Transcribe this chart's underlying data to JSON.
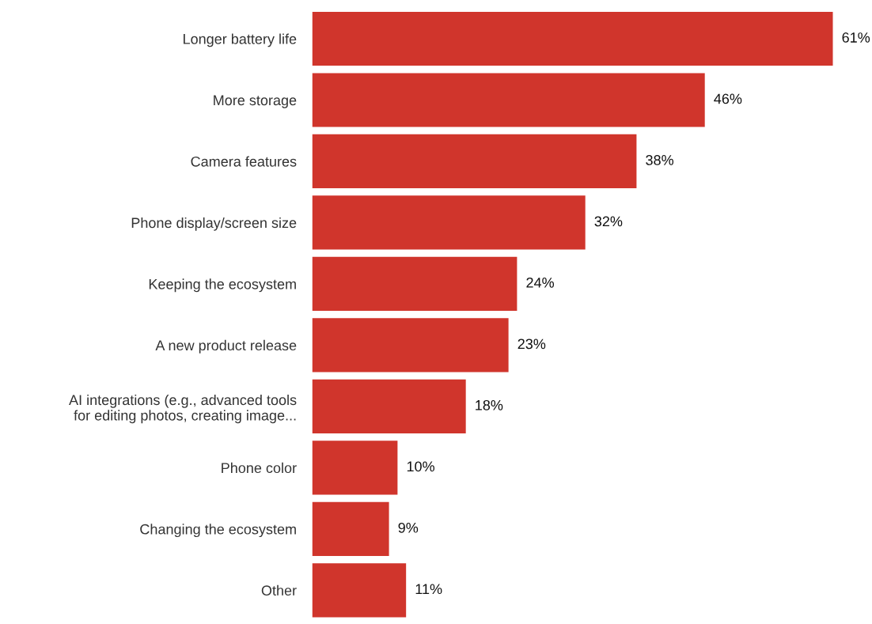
{
  "chart_data": {
    "type": "bar",
    "orientation": "horizontal",
    "categories": [
      "Longer battery life",
      "More storage",
      "Camera features",
      "Phone display/screen size",
      "Keeping the ecosystem",
      "A new product release",
      "AI integrations (e.g., advanced tools\nfor editing photos, creating image...",
      "Phone color",
      "Changing the ecosystem",
      "Other"
    ],
    "values": [
      61,
      46,
      38,
      32,
      24,
      23,
      18,
      10,
      9,
      11
    ],
    "value_labels": [
      "61%",
      "46%",
      "38%",
      "32%",
      "24%",
      "23%",
      "18%",
      "10%",
      "9%",
      "11%"
    ],
    "color": "#d0352c",
    "grid": false,
    "legend": false
  }
}
